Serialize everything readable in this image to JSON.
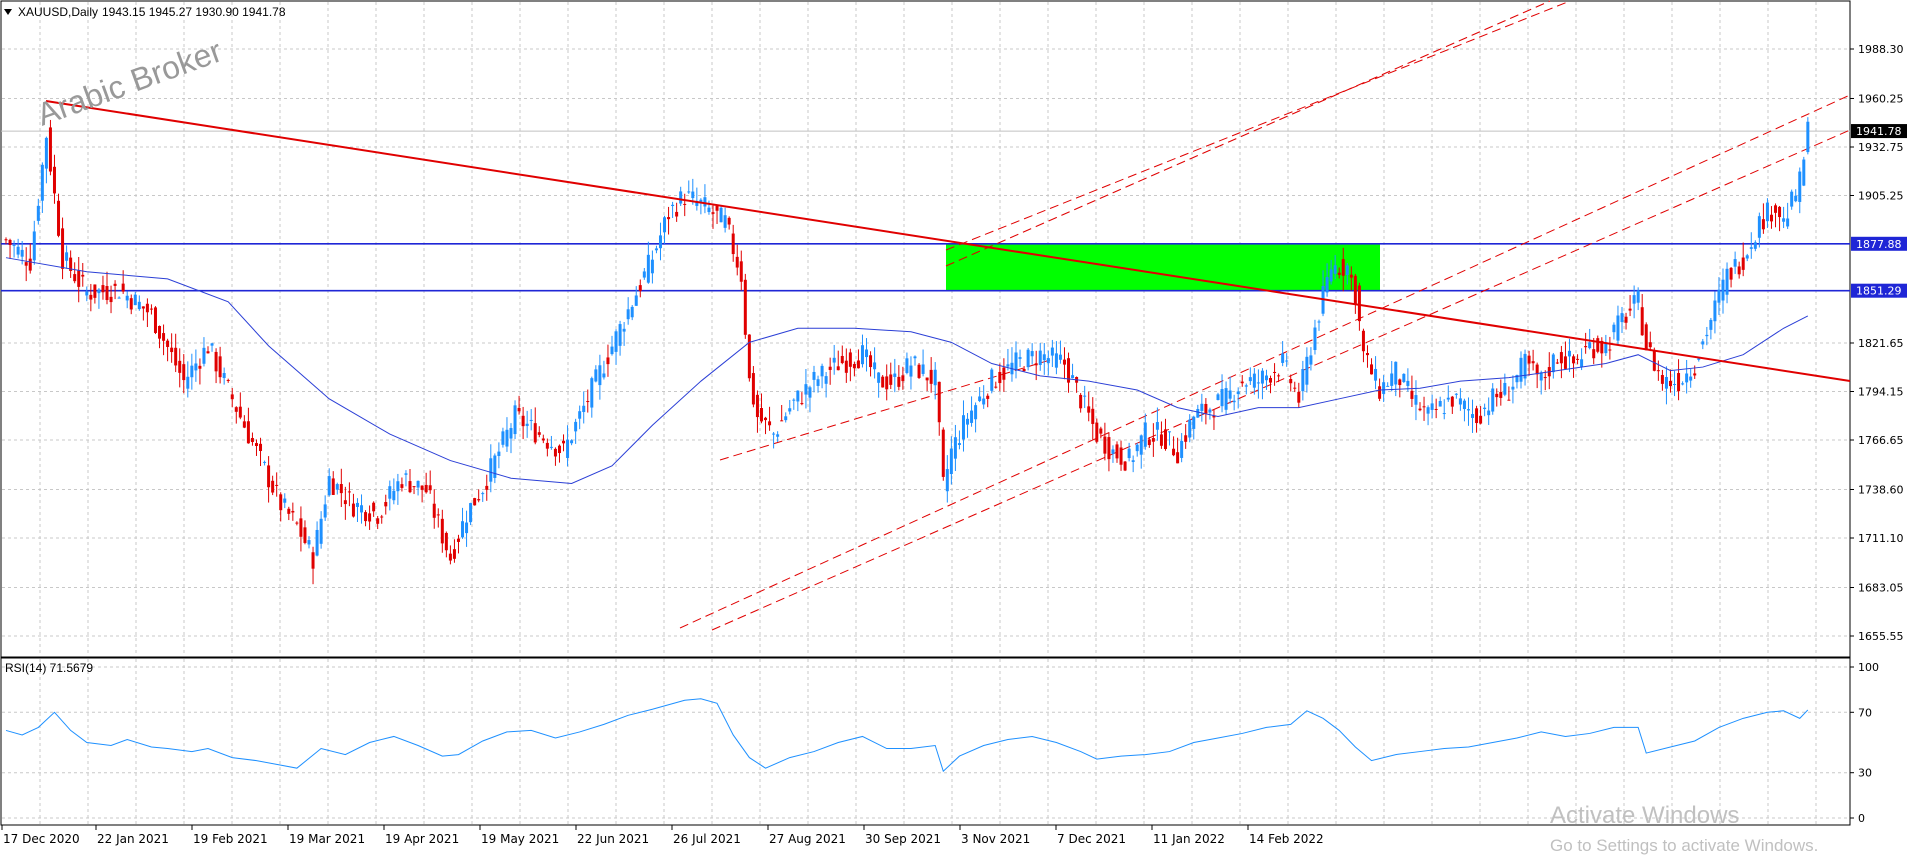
{
  "header": {
    "symbol": "XAUUSD,Daily",
    "ohlc": "1943.15 1945.27 1930.90 1941.78",
    "menu_icon": "triangle-down-icon"
  },
  "watermark": "Arabic Broker",
  "rsi_header": "RSI(14) 71.5679",
  "windows_notice": {
    "line1": "Activate Windows",
    "line2": "Go to Settings to activate Windows."
  },
  "colors": {
    "bull": "#1e90ff",
    "bear": "#e00000",
    "ma": "#2b3fd6",
    "trend": "#e00000",
    "hline": "#1f26d6",
    "zone": "#00ff00",
    "rsi": "#1e90ff",
    "grid": "#c8c8c8"
  },
  "chart_data": {
    "type": "candlestick",
    "price_ticks": [
      "1988.30",
      "1960.25",
      "1932.75",
      "1905.25",
      "1821.65",
      "1794.15",
      "1766.65",
      "1738.60",
      "1711.10",
      "1683.05",
      "1655.55"
    ],
    "current_price": "1941.78",
    "levels": [
      {
        "label": "1877.88",
        "value": 1877.88
      },
      {
        "label": "1851.29",
        "value": 1851.29
      }
    ],
    "date_labels": [
      "17 Dec 2020",
      "22 Jan 2021",
      "19 Feb 2021",
      "19 Mar 2021",
      "19 Apr 2021",
      "19 May 2021",
      "22 Jun 2021",
      "26 Jul 2021",
      "27 Aug 2021",
      "30 Sep 2021",
      "3 Nov 2021",
      "7 Dec 2021",
      "11 Jan 2022",
      "14 Feb 2022"
    ],
    "close_path": [
      [
        0,
        1880
      ],
      [
        6,
        1868
      ],
      [
        10,
        1940
      ],
      [
        14,
        1870
      ],
      [
        20,
        1850
      ],
      [
        28,
        1852
      ],
      [
        36,
        1838
      ],
      [
        44,
        1800
      ],
      [
        50,
        1820
      ],
      [
        56,
        1790
      ],
      [
        62,
        1760
      ],
      [
        68,
        1730
      ],
      [
        72,
        1718
      ],
      [
        76,
        1700
      ],
      [
        80,
        1745
      ],
      [
        86,
        1730
      ],
      [
        92,
        1725
      ],
      [
        98,
        1745
      ],
      [
        104,
        1738
      ],
      [
        110,
        1700
      ],
      [
        114,
        1725
      ],
      [
        118,
        1740
      ],
      [
        122,
        1760
      ],
      [
        126,
        1780
      ],
      [
        132,
        1770
      ],
      [
        138,
        1760
      ],
      [
        144,
        1790
      ],
      [
        150,
        1820
      ],
      [
        156,
        1850
      ],
      [
        160,
        1870
      ],
      [
        164,
        1895
      ],
      [
        168,
        1905
      ],
      [
        172,
        1900
      ],
      [
        178,
        1890
      ],
      [
        182,
        1860
      ],
      [
        184,
        1800
      ],
      [
        186,
        1780
      ],
      [
        190,
        1770
      ],
      [
        194,
        1785
      ],
      [
        200,
        1800
      ],
      [
        206,
        1810
      ],
      [
        212,
        1815
      ],
      [
        216,
        1800
      ],
      [
        220,
        1800
      ],
      [
        224,
        1810
      ],
      [
        230,
        1800
      ],
      [
        232,
        1740
      ],
      [
        234,
        1760
      ],
      [
        238,
        1780
      ],
      [
        244,
        1800
      ],
      [
        250,
        1810
      ],
      [
        256,
        1815
      ],
      [
        262,
        1810
      ],
      [
        266,
        1790
      ],
      [
        270,
        1770
      ],
      [
        274,
        1760
      ],
      [
        278,
        1755
      ],
      [
        282,
        1770
      ],
      [
        286,
        1770
      ],
      [
        290,
        1760
      ],
      [
        294,
        1780
      ],
      [
        298,
        1785
      ],
      [
        302,
        1790
      ],
      [
        306,
        1800
      ],
      [
        310,
        1800
      ],
      [
        316,
        1810
      ],
      [
        320,
        1790
      ],
      [
        324,
        1830
      ],
      [
        328,
        1865
      ],
      [
        332,
        1865
      ],
      [
        334,
        1850
      ],
      [
        336,
        1815
      ],
      [
        340,
        1795
      ],
      [
        344,
        1805
      ],
      [
        348,
        1790
      ],
      [
        352,
        1780
      ],
      [
        358,
        1790
      ],
      [
        364,
        1780
      ],
      [
        368,
        1790
      ],
      [
        372,
        1795
      ],
      [
        376,
        1810
      ],
      [
        380,
        1800
      ],
      [
        384,
        1815
      ],
      [
        388,
        1810
      ],
      [
        392,
        1820
      ],
      [
        396,
        1820
      ],
      [
        400,
        1835
      ],
      [
        404,
        1845
      ],
      [
        406,
        1820
      ],
      [
        410,
        1800
      ],
      [
        414,
        1800
      ],
      [
        418,
        1810
      ],
      [
        422,
        1835
      ],
      [
        426,
        1860
      ],
      [
        430,
        1870
      ],
      [
        434,
        1890
      ],
      [
        438,
        1900
      ],
      [
        440,
        1890
      ],
      [
        444,
        1912
      ],
      [
        446,
        1941.78
      ]
    ],
    "ma_path": [
      [
        0,
        1870
      ],
      [
        20,
        1862
      ],
      [
        40,
        1858
      ],
      [
        55,
        1845
      ],
      [
        65,
        1820
      ],
      [
        80,
        1790
      ],
      [
        95,
        1770
      ],
      [
        110,
        1755
      ],
      [
        125,
        1745
      ],
      [
        140,
        1742
      ],
      [
        150,
        1752
      ],
      [
        160,
        1775
      ],
      [
        172,
        1800
      ],
      [
        184,
        1822
      ],
      [
        196,
        1830
      ],
      [
        210,
        1830
      ],
      [
        224,
        1828
      ],
      [
        234,
        1822
      ],
      [
        244,
        1810
      ],
      [
        256,
        1803
      ],
      [
        268,
        1800
      ],
      [
        280,
        1795
      ],
      [
        290,
        1785
      ],
      [
        300,
        1780
      ],
      [
        310,
        1785
      ],
      [
        320,
        1785
      ],
      [
        330,
        1790
      ],
      [
        340,
        1795
      ],
      [
        350,
        1796
      ],
      [
        360,
        1800
      ],
      [
        372,
        1802
      ],
      [
        384,
        1806
      ],
      [
        396,
        1810
      ],
      [
        404,
        1815
      ],
      [
        412,
        1806
      ],
      [
        420,
        1808
      ],
      [
        430,
        1815
      ],
      [
        440,
        1830
      ],
      [
        446,
        1837
      ]
    ],
    "rsi": {
      "ticks": [
        "100",
        "70",
        "30",
        "0"
      ],
      "path": [
        [
          0,
          58
        ],
        [
          4,
          55
        ],
        [
          8,
          60
        ],
        [
          12,
          70
        ],
        [
          16,
          58
        ],
        [
          20,
          50
        ],
        [
          26,
          48
        ],
        [
          30,
          52
        ],
        [
          36,
          47
        ],
        [
          40,
          46
        ],
        [
          46,
          44
        ],
        [
          50,
          46
        ],
        [
          56,
          40
        ],
        [
          62,
          38
        ],
        [
          68,
          35
        ],
        [
          72,
          33
        ],
        [
          78,
          46
        ],
        [
          84,
          42
        ],
        [
          90,
          50
        ],
        [
          96,
          54
        ],
        [
          102,
          48
        ],
        [
          108,
          41
        ],
        [
          112,
          42
        ],
        [
          118,
          51
        ],
        [
          124,
          57
        ],
        [
          130,
          58
        ],
        [
          136,
          53
        ],
        [
          142,
          57
        ],
        [
          148,
          62
        ],
        [
          154,
          68
        ],
        [
          160,
          72
        ],
        [
          164,
          75
        ],
        [
          168,
          78
        ],
        [
          172,
          79
        ],
        [
          176,
          76
        ],
        [
          180,
          55
        ],
        [
          184,
          40
        ],
        [
          188,
          33
        ],
        [
          194,
          40
        ],
        [
          200,
          44
        ],
        [
          206,
          50
        ],
        [
          212,
          54
        ],
        [
          218,
          46
        ],
        [
          224,
          46
        ],
        [
          230,
          48
        ],
        [
          232,
          31
        ],
        [
          236,
          41
        ],
        [
          242,
          48
        ],
        [
          248,
          52
        ],
        [
          254,
          54
        ],
        [
          260,
          50
        ],
        [
          266,
          44
        ],
        [
          270,
          39
        ],
        [
          276,
          41
        ],
        [
          282,
          42
        ],
        [
          288,
          44
        ],
        [
          294,
          50
        ],
        [
          300,
          53
        ],
        [
          306,
          56
        ],
        [
          312,
          60
        ],
        [
          318,
          62
        ],
        [
          322,
          71
        ],
        [
          326,
          66
        ],
        [
          330,
          58
        ],
        [
          334,
          47
        ],
        [
          338,
          38
        ],
        [
          344,
          42
        ],
        [
          350,
          44
        ],
        [
          356,
          46
        ],
        [
          362,
          47
        ],
        [
          368,
          50
        ],
        [
          374,
          53
        ],
        [
          380,
          57
        ],
        [
          386,
          54
        ],
        [
          392,
          56
        ],
        [
          398,
          60
        ],
        [
          404,
          60
        ],
        [
          406,
          43
        ],
        [
          412,
          47
        ],
        [
          418,
          51
        ],
        [
          424,
          60
        ],
        [
          430,
          66
        ],
        [
          436,
          70
        ],
        [
          440,
          71
        ],
        [
          444,
          66
        ],
        [
          446,
          71.5679
        ]
      ]
    }
  }
}
